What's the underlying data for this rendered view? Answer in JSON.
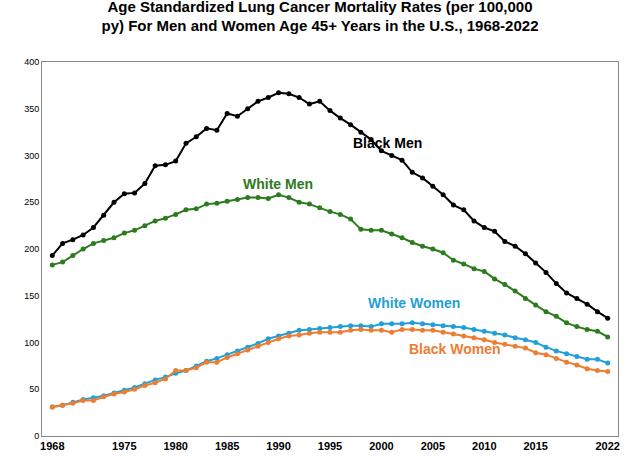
{
  "chart_data": {
    "type": "line",
    "title": "Age Standardized Lung Cancer Mortality Rates (per 100,000\npy) For Men and Women Age 45+ Years in the U.S., 1968-2022",
    "x": [
      1968,
      1969,
      1970,
      1971,
      1972,
      1973,
      1974,
      1975,
      1976,
      1977,
      1978,
      1979,
      1980,
      1981,
      1982,
      1983,
      1984,
      1985,
      1986,
      1987,
      1988,
      1989,
      1990,
      1991,
      1992,
      1993,
      1994,
      1995,
      1996,
      1997,
      1998,
      1999,
      2000,
      2001,
      2002,
      2003,
      2004,
      2005,
      2006,
      2007,
      2008,
      2009,
      2010,
      2011,
      2012,
      2013,
      2014,
      2015,
      2016,
      2017,
      2018,
      2019,
      2020,
      2021,
      2022
    ],
    "series": [
      {
        "name": "Black Men",
        "color": "#000000",
        "marker": "circle",
        "values": [
          193,
          206,
          210,
          215,
          223,
          236,
          250,
          259,
          260,
          270,
          289,
          290,
          294,
          313,
          320,
          329,
          327,
          345,
          342,
          350,
          358,
          362,
          367,
          366,
          362,
          355,
          358,
          348,
          340,
          333,
          325,
          317,
          305,
          300,
          295,
          282,
          276,
          267,
          258,
          247,
          242,
          230,
          223,
          219,
          208,
          203,
          195,
          185,
          175,
          163,
          153,
          147,
          141,
          133,
          126
        ]
      },
      {
        "name": "White Men",
        "color": "#2d7a1f",
        "marker": "circle",
        "values": [
          183,
          186,
          193,
          200,
          206,
          209,
          212,
          217,
          220,
          225,
          230,
          233,
          237,
          242,
          243,
          248,
          249,
          251,
          253,
          255,
          255,
          254,
          258,
          255,
          250,
          248,
          244,
          240,
          237,
          232,
          221,
          220,
          220,
          216,
          212,
          207,
          203,
          200,
          196,
          188,
          184,
          179,
          176,
          168,
          162,
          155,
          147,
          140,
          133,
          128,
          121,
          117,
          114,
          112,
          106
        ]
      },
      {
        "name": "White Women",
        "color": "#1fa0d8",
        "marker": "circle",
        "values": [
          31,
          33,
          36,
          39,
          41,
          43,
          46,
          49,
          52,
          56,
          60,
          63,
          67,
          70,
          75,
          80,
          83,
          87,
          91,
          95,
          99,
          104,
          107,
          110,
          113,
          114,
          115,
          116,
          117,
          118,
          118,
          117,
          120,
          120,
          120,
          121,
          120,
          119,
          118,
          117,
          116,
          114,
          112,
          110,
          108,
          105,
          103,
          100,
          95,
          91,
          88,
          85,
          82,
          82,
          78
        ]
      },
      {
        "name": "Black Women",
        "color": "#ed7d31",
        "marker": "circle",
        "values": [
          31,
          33,
          35,
          38,
          38,
          42,
          45,
          47,
          50,
          54,
          57,
          61,
          70,
          70,
          73,
          79,
          79,
          84,
          88,
          92,
          96,
          100,
          104,
          107,
          108,
          110,
          111,
          111,
          111,
          113,
          114,
          113,
          113,
          111,
          114,
          114,
          113,
          113,
          111,
          109,
          107,
          105,
          103,
          100,
          98,
          96,
          94,
          89,
          87,
          83,
          79,
          76,
          72,
          70,
          69
        ]
      }
    ],
    "xlim": [
      1967,
      2023
    ],
    "xticks": [
      1968,
      1975,
      1980,
      1985,
      1990,
      1995,
      2000,
      2005,
      2010,
      2015,
      2022
    ],
    "ylim": [
      0,
      400
    ],
    "yticks": [
      0,
      50,
      100,
      150,
      200,
      250,
      300,
      350,
      400
    ],
    "grid": false
  }
}
